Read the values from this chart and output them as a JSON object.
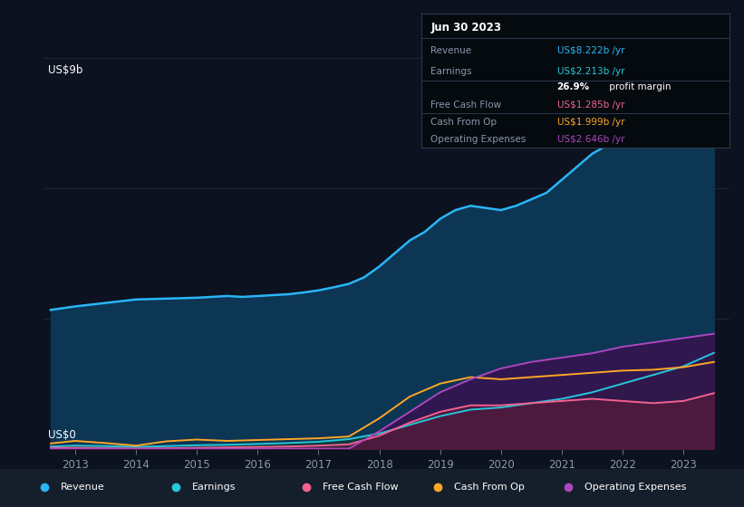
{
  "bg_color": "#0c1220",
  "plot_bg_color": "#0c1220",
  "ylabel": "US$9b",
  "y0label": "US$0",
  "ylim": [
    0,
    9
  ],
  "xlim": [
    2012.5,
    2023.75
  ],
  "xticks": [
    2013,
    2014,
    2015,
    2016,
    2017,
    2018,
    2019,
    2020,
    2021,
    2022,
    2023
  ],
  "grid_color": "#1e2d3d",
  "series": {
    "Revenue": {
      "color": "#29b6f6",
      "fill_color": "#0d3554",
      "years": [
        2012.6,
        2013.0,
        2013.25,
        2013.5,
        2013.75,
        2014.0,
        2014.25,
        2014.5,
        2014.75,
        2015.0,
        2015.25,
        2015.5,
        2015.75,
        2016.0,
        2016.25,
        2016.5,
        2016.75,
        2017.0,
        2017.25,
        2017.5,
        2017.75,
        2018.0,
        2018.25,
        2018.5,
        2018.75,
        2019.0,
        2019.25,
        2019.5,
        2019.75,
        2020.0,
        2020.25,
        2020.5,
        2020.75,
        2021.0,
        2021.25,
        2021.5,
        2021.75,
        2022.0,
        2022.25,
        2022.5,
        2022.75,
        2023.0,
        2023.5
      ],
      "values": [
        3.2,
        3.28,
        3.32,
        3.36,
        3.4,
        3.44,
        3.45,
        3.46,
        3.47,
        3.48,
        3.5,
        3.52,
        3.5,
        3.52,
        3.54,
        3.56,
        3.6,
        3.65,
        3.72,
        3.8,
        3.95,
        4.2,
        4.5,
        4.8,
        5.0,
        5.3,
        5.5,
        5.6,
        5.55,
        5.5,
        5.6,
        5.75,
        5.9,
        6.2,
        6.5,
        6.8,
        7.0,
        7.2,
        7.4,
        7.6,
        7.8,
        8.0,
        8.22
      ]
    },
    "Earnings": {
      "color": "#26c6da",
      "fill_color": "#0d3a38",
      "years": [
        2012.6,
        2013.0,
        2013.5,
        2014.0,
        2014.5,
        2015.0,
        2015.5,
        2016.0,
        2016.5,
        2017.0,
        2017.5,
        2018.0,
        2018.5,
        2019.0,
        2019.5,
        2020.0,
        2020.5,
        2021.0,
        2021.5,
        2022.0,
        2022.5,
        2023.0,
        2023.5
      ],
      "values": [
        0.05,
        0.07,
        0.06,
        0.04,
        0.06,
        0.08,
        0.09,
        0.11,
        0.13,
        0.16,
        0.22,
        0.35,
        0.55,
        0.75,
        0.9,
        0.95,
        1.05,
        1.15,
        1.3,
        1.5,
        1.7,
        1.9,
        2.21
      ]
    },
    "FreeCashFlow": {
      "color": "#f06292",
      "fill_color": "#5c1a3a",
      "years": [
        2012.6,
        2013.0,
        2013.5,
        2014.0,
        2014.5,
        2015.0,
        2015.5,
        2016.0,
        2016.5,
        2017.0,
        2017.5,
        2018.0,
        2018.5,
        2019.0,
        2019.5,
        2020.0,
        2020.5,
        2021.0,
        2021.5,
        2022.0,
        2022.5,
        2023.0,
        2023.5
      ],
      "values": [
        0.02,
        0.02,
        0.01,
        0.0,
        0.01,
        0.02,
        0.03,
        0.04,
        0.05,
        0.07,
        0.1,
        0.3,
        0.6,
        0.85,
        1.0,
        1.0,
        1.05,
        1.1,
        1.15,
        1.1,
        1.05,
        1.1,
        1.28
      ]
    },
    "CashFromOp": {
      "color": "#ffa726",
      "fill_color": "#3d2800",
      "years": [
        2012.6,
        2013.0,
        2013.5,
        2014.0,
        2014.5,
        2015.0,
        2015.5,
        2016.0,
        2016.5,
        2017.0,
        2017.5,
        2018.0,
        2018.5,
        2019.0,
        2019.5,
        2020.0,
        2020.5,
        2021.0,
        2021.5,
        2022.0,
        2022.5,
        2023.0,
        2023.5
      ],
      "values": [
        0.12,
        0.18,
        0.13,
        0.07,
        0.17,
        0.21,
        0.18,
        0.2,
        0.22,
        0.24,
        0.28,
        0.7,
        1.2,
        1.5,
        1.65,
        1.6,
        1.65,
        1.7,
        1.75,
        1.8,
        1.82,
        1.88,
        2.0
      ]
    },
    "OperatingExpenses": {
      "color": "#ab47bc",
      "fill_color": "#3a1050",
      "years": [
        2012.6,
        2013.0,
        2013.5,
        2014.0,
        2014.5,
        2015.0,
        2015.5,
        2016.0,
        2016.5,
        2017.0,
        2017.5,
        2018.0,
        2018.5,
        2019.0,
        2019.5,
        2020.0,
        2020.5,
        2021.0,
        2021.5,
        2022.0,
        2022.5,
        2023.0,
        2023.5
      ],
      "values": [
        0.0,
        0.0,
        0.0,
        0.0,
        0.0,
        0.0,
        0.0,
        0.0,
        0.0,
        0.0,
        0.0,
        0.4,
        0.85,
        1.3,
        1.6,
        1.85,
        2.0,
        2.1,
        2.2,
        2.35,
        2.45,
        2.55,
        2.65
      ]
    }
  },
  "info_box": {
    "title": "Jun 30 2023",
    "rows": [
      {
        "label": "Revenue",
        "value": "US$8.222b /yr",
        "value_color": "#29b6f6",
        "label_color": "#8899aa"
      },
      {
        "label": "Earnings",
        "value": "US$2.213b /yr",
        "value_color": "#26c6da",
        "label_color": "#8899aa"
      },
      {
        "label": "",
        "value": "26.9% profit margin",
        "value_color": "#ffffff",
        "label_color": "#8899aa",
        "bold_prefix": "26.9%"
      },
      {
        "label": "Free Cash Flow",
        "value": "US$1.285b /yr",
        "value_color": "#f06292",
        "label_color": "#8899aa"
      },
      {
        "label": "Cash From Op",
        "value": "US$1.999b /yr",
        "value_color": "#ffa726",
        "label_color": "#8899aa"
      },
      {
        "label": "Operating Expenses",
        "value": "US$2.646b /yr",
        "value_color": "#ab47bc",
        "label_color": "#8899aa"
      }
    ]
  },
  "legend": [
    {
      "label": "Revenue",
      "color": "#29b6f6"
    },
    {
      "label": "Earnings",
      "color": "#26c6da"
    },
    {
      "label": "Free Cash Flow",
      "color": "#f06292"
    },
    {
      "label": "Cash From Op",
      "color": "#ffa726"
    },
    {
      "label": "Operating Expenses",
      "color": "#ab47bc"
    }
  ],
  "legend_bg": "#151e2b"
}
